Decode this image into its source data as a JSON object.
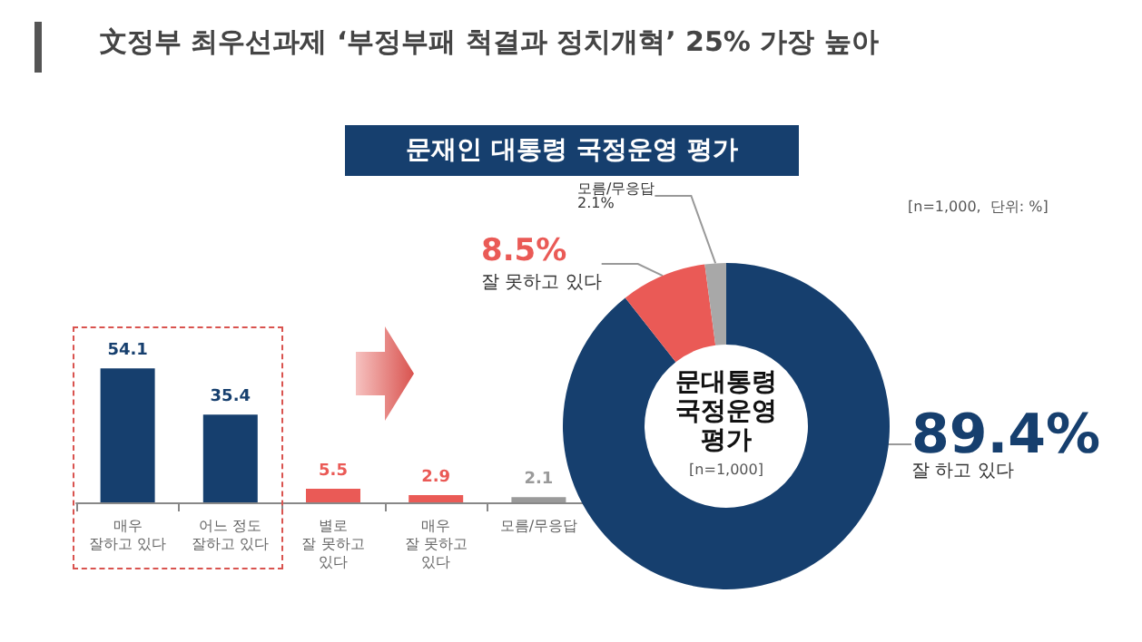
{
  "chart_data": [
    {
      "type": "bar",
      "title": "文정부 최우선과제 ‘부정부패 척결과 정치개혁’ 25% 가장 높아",
      "subtitle": "문재인 대통령 국정운영 평가",
      "categories": [
        "매우\n잘하고 있다",
        "어느 정도\n잘하고 있다",
        "별로\n잘 못하고\n있다",
        "매우\n잘 못하고\n있다",
        "모름/무응답"
      ],
      "values": [
        54.1,
        35.4,
        5.5,
        2.9,
        2.1
      ],
      "colors": [
        "#163f6e",
        "#163f6e",
        "#ea5a56",
        "#ea5a56",
        "#9a9a9a"
      ],
      "data_labels": true,
      "grid": false,
      "legend": false
    },
    {
      "type": "donut",
      "categories": [
        "잘 하고 있다",
        "잘 못하고 있다",
        "모름/무응답"
      ],
      "values": [
        89.4,
        8.5,
        2.1
      ],
      "value_labels": [
        "89.4%",
        "8.5%",
        "2.1%"
      ],
      "colors": [
        "#163f6e",
        "#ea5a56",
        "#a8a8a8"
      ],
      "annotations": [
        "문대통령\n국정운영\n평가",
        "[n=1,000]",
        "[n=1,000,  단위: %]"
      ],
      "legend": false
    }
  ]
}
